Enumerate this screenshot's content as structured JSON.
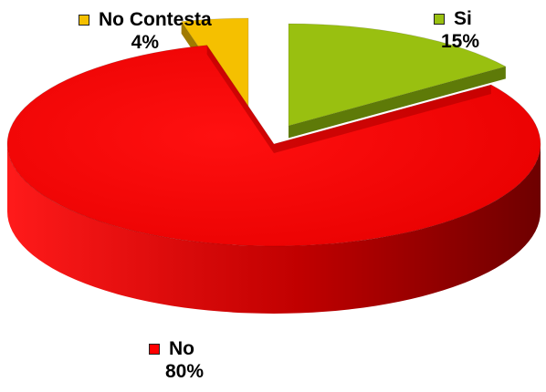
{
  "chart_data": {
    "type": "pie",
    "style": "3d-exploded",
    "categories": [
      "Si",
      "No",
      "No Contesta"
    ],
    "values": [
      15,
      80,
      4
    ],
    "percent_labels": [
      "15%",
      "80%",
      "4%"
    ],
    "colors": [
      "#99C010",
      "#FF0000",
      "#F5C000"
    ],
    "side_colors": [
      "#5E7A08",
      "#9E0000",
      "#A07A00"
    ],
    "title": "",
    "legend": "labels-with-swatches"
  }
}
